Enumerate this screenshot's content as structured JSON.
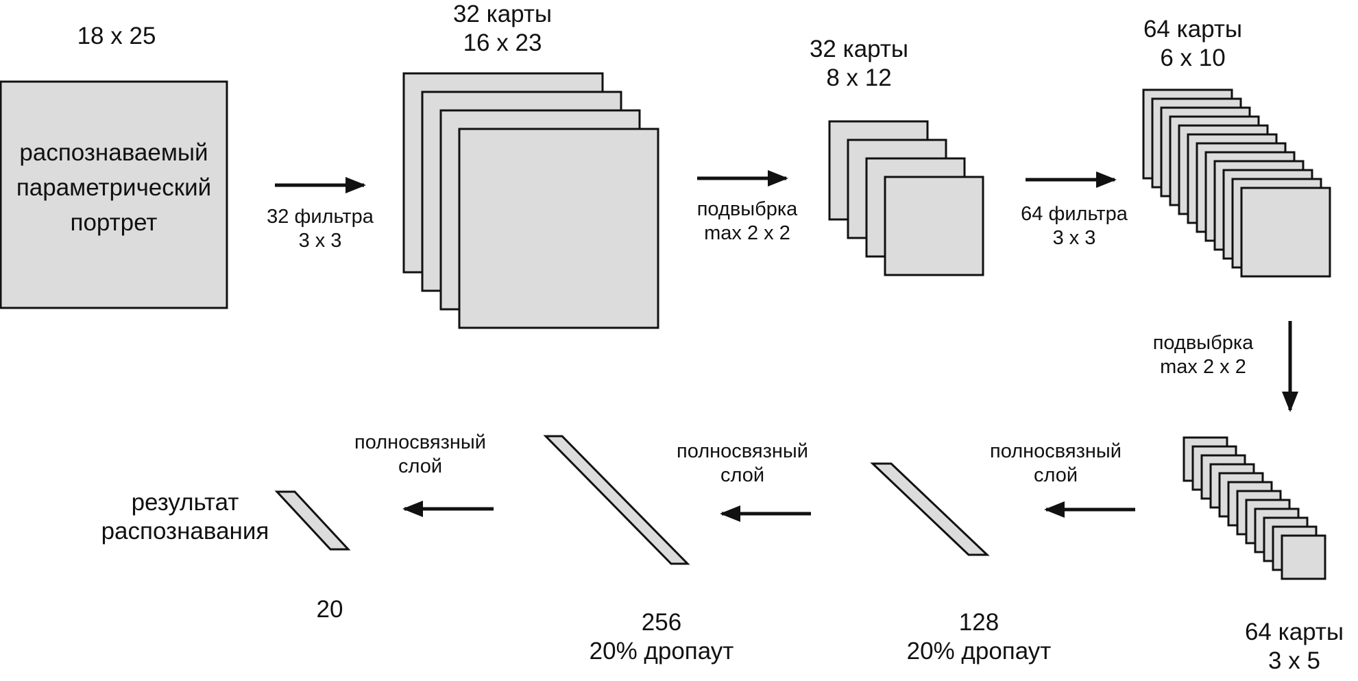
{
  "input": {
    "size": "18 x 25",
    "text": [
      "распознаваемый",
      "параметрический",
      "портрет"
    ]
  },
  "step1": {
    "line1": "32 фильтра",
    "line2": "3 x 3"
  },
  "maps1": {
    "line1": "32 карты",
    "line2": "16 x 23"
  },
  "step2": {
    "line1": "подвыбрка",
    "line2": "max 2 x 2"
  },
  "maps2": {
    "line1": "32 карты",
    "line2": "8 x 12"
  },
  "step3": {
    "line1": "64 фильтра",
    "line2": "3 x 3"
  },
  "maps3": {
    "line1": "64 карты",
    "line2": "6 x 10"
  },
  "step4": {
    "line1": "подвыбрка",
    "line2": "max 2 x 2"
  },
  "maps4": {
    "line1": "64 карты",
    "line2": "3 x 5"
  },
  "fc1": {
    "label1": "полносвязный",
    "label2": "слой"
  },
  "layer128": {
    "line1": "128",
    "line2": "20% дропаут"
  },
  "fc2": {
    "label1": "полносвязный",
    "label2": "слой"
  },
  "layer256": {
    "line1": "256",
    "line2": "20% дропаут"
  },
  "fc3": {
    "label1": "полносвязный",
    "label2": "слой"
  },
  "output": {
    "line1": "результат",
    "line2": "распознавания",
    "size": "20"
  },
  "colors": {
    "box_fill": "#dcdcdc",
    "stroke": "#111111"
  }
}
